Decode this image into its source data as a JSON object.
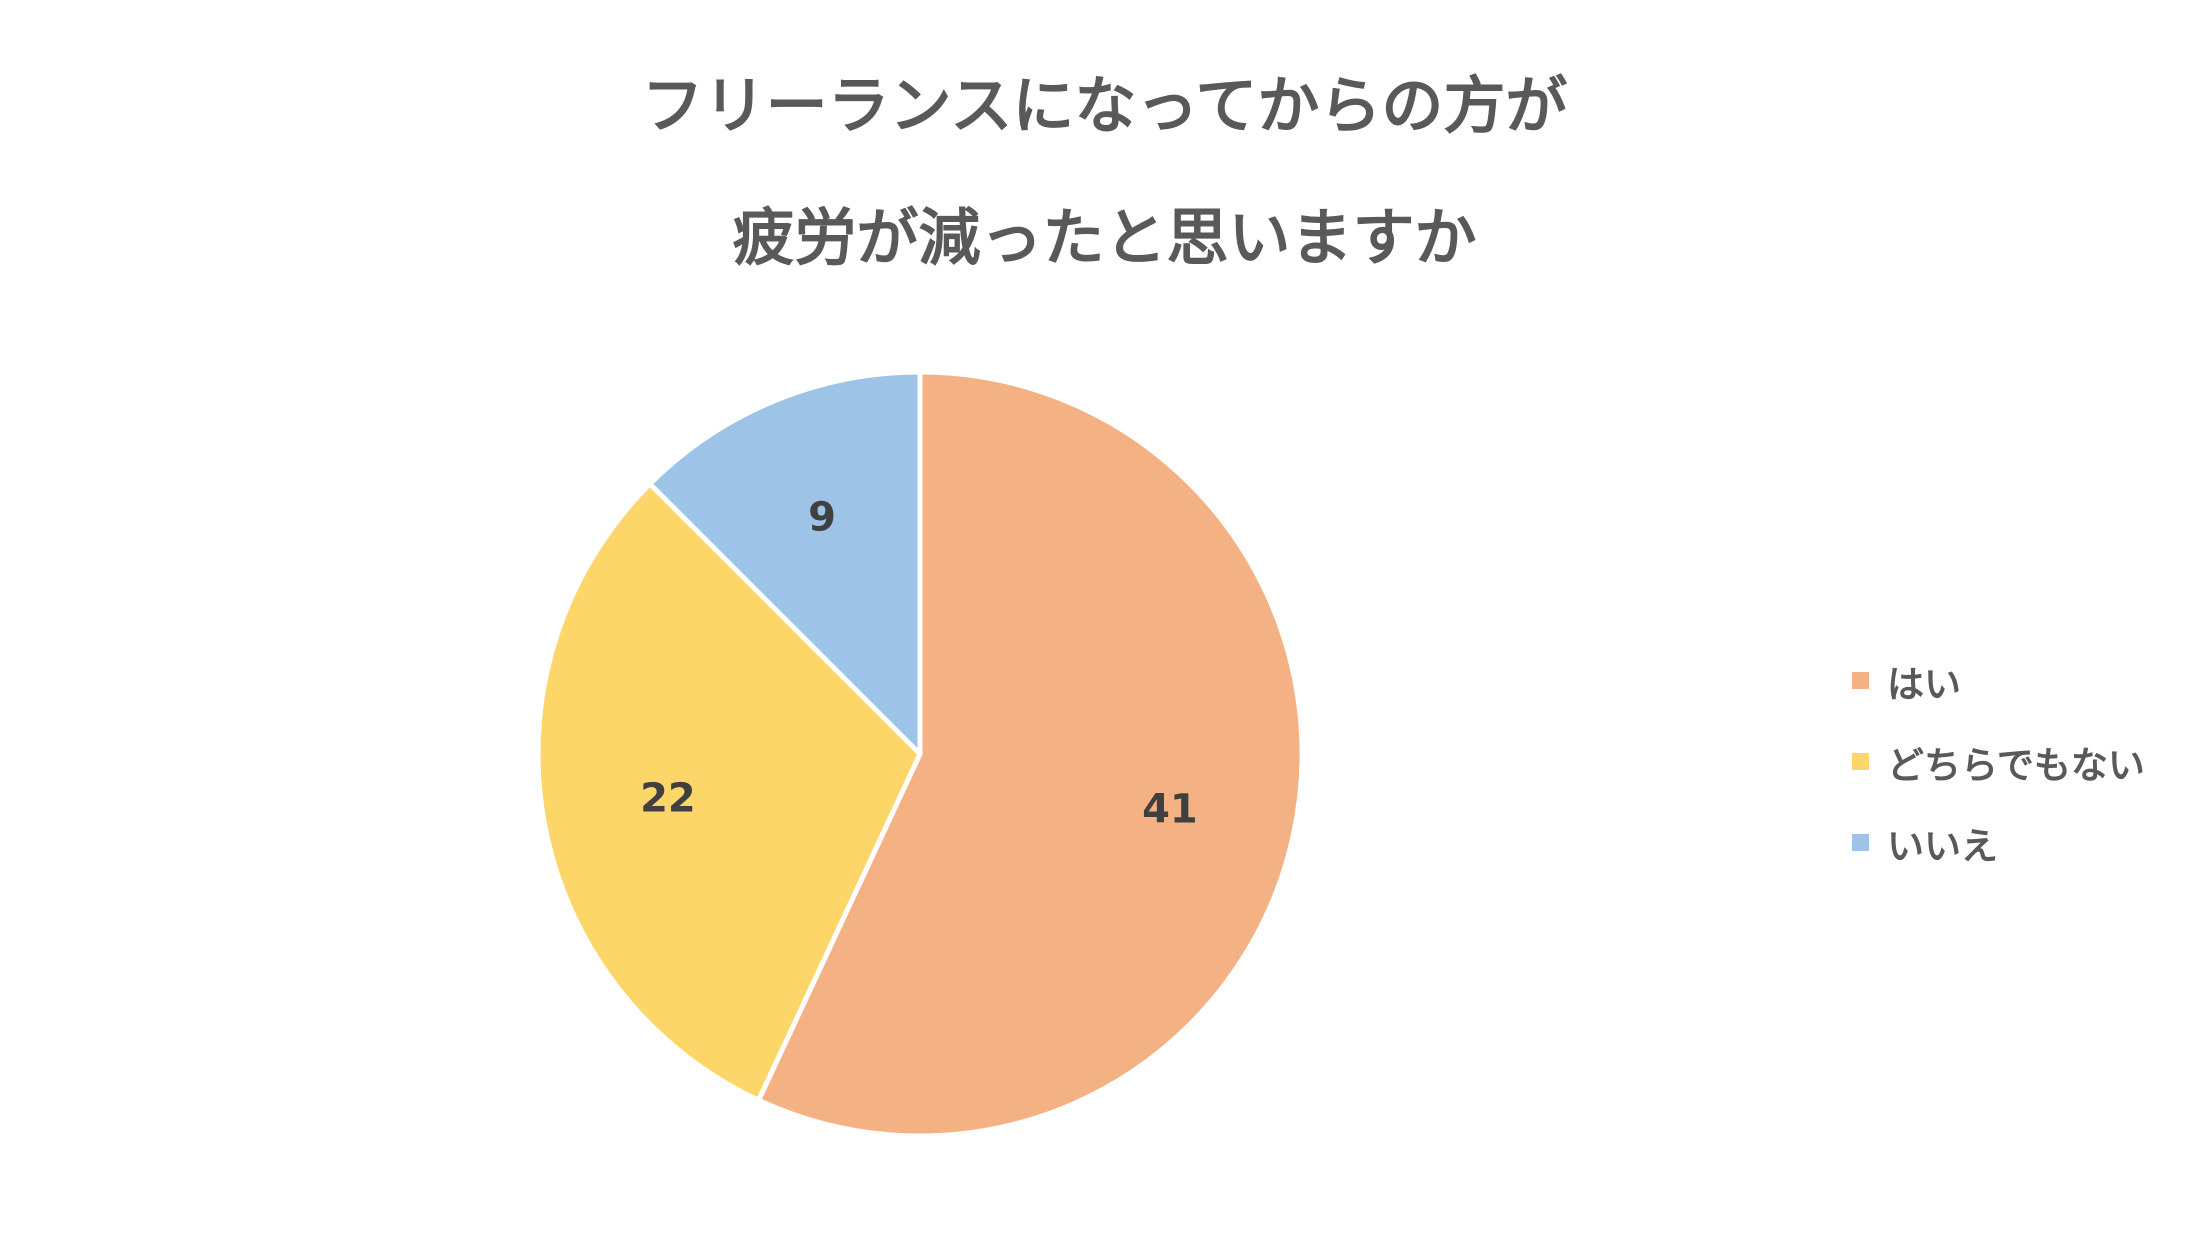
{
  "chart_data": {
    "type": "pie",
    "title_lines": [
      "フリーランスになってからの方が",
      "疲労が減ったと思いますか"
    ],
    "categories": [
      "はい",
      "どちらでもない",
      "いいえ"
    ],
    "values": [
      41,
      22,
      9
    ],
    "data_labels": [
      "41",
      "22",
      "9"
    ],
    "colors": [
      "#F4B183",
      "#FCD669",
      "#9DC3E6"
    ],
    "start_angle": "12 o'clock, clockwise",
    "legend_position": "right",
    "show_data_labels": true
  }
}
